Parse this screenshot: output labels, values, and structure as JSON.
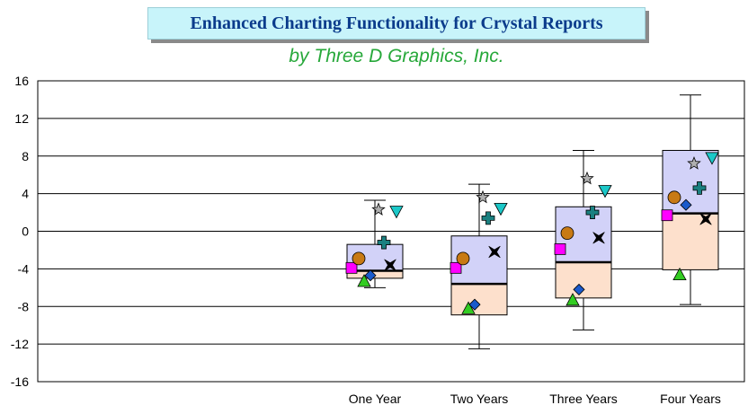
{
  "title": "Enhanced Charting Functionality for Crystal Reports",
  "subtitle": "by Three D Graphics, Inc.",
  "chart_data": {
    "type": "box",
    "categories": [
      "One Year",
      "Two Years",
      "Three Years",
      "Four Years"
    ],
    "ylim": [
      -16,
      16
    ],
    "yticks": [
      16,
      12,
      8,
      4,
      0,
      -4,
      -8,
      -12,
      -16
    ],
    "ytick_labels": [
      "16",
      "12",
      "8",
      "4",
      "0",
      "-4",
      "-8",
      "-12",
      "-16"
    ],
    "grid": true,
    "box_colors": {
      "upper": "#d2d2f8",
      "lower": "#fde0cc"
    },
    "boxes": [
      {
        "category": "One Year",
        "whisker_low": -6,
        "q1": -5,
        "median": -4.2,
        "q3": -1.4,
        "whisker_high": 3.3
      },
      {
        "category": "Two Years",
        "whisker_low": -12.5,
        "q1": -8.9,
        "median": -5.6,
        "q3": -0.5,
        "whisker_high": 5
      },
      {
        "category": "Three Years",
        "whisker_low": -10.5,
        "q1": -7.1,
        "median": -3.3,
        "q3": 2.6,
        "whisker_high": 8.6
      },
      {
        "category": "Four Years",
        "whisker_low": -7.8,
        "q1": -4.1,
        "median": 1.9,
        "q3": 8.6,
        "whisker_high": 14.5
      }
    ],
    "series": [
      {
        "marker": "square",
        "color": "#ff00ff",
        "values": [
          -3.9,
          -3.9,
          -1.9,
          1.7
        ]
      },
      {
        "marker": "circle",
        "color": "#c87a14",
        "values": [
          -2.9,
          -2.9,
          -0.2,
          3.6
        ]
      },
      {
        "marker": "triangle-up",
        "color": "#33cc22",
        "values": [
          -5.3,
          -8.2,
          -7.3,
          -4.6
        ]
      },
      {
        "marker": "diamond",
        "color": "#1a5acc",
        "values": [
          -4.7,
          -7.8,
          -6.2,
          2.8
        ]
      },
      {
        "marker": "plus",
        "color": "#1a8080",
        "values": [
          -1.2,
          1.4,
          2,
          4.6
        ]
      },
      {
        "marker": "star",
        "color": "#b0b0b0",
        "values": [
          2.3,
          3.6,
          5.6,
          7.2
        ]
      },
      {
        "marker": "cross-star",
        "color": "#000000",
        "values": [
          -3.6,
          -2.2,
          -0.7,
          1.3
        ]
      },
      {
        "marker": "triangle-down",
        "color": "#1cc8c8",
        "values": [
          2.1,
          2.4,
          4.3,
          7.8
        ]
      }
    ]
  }
}
